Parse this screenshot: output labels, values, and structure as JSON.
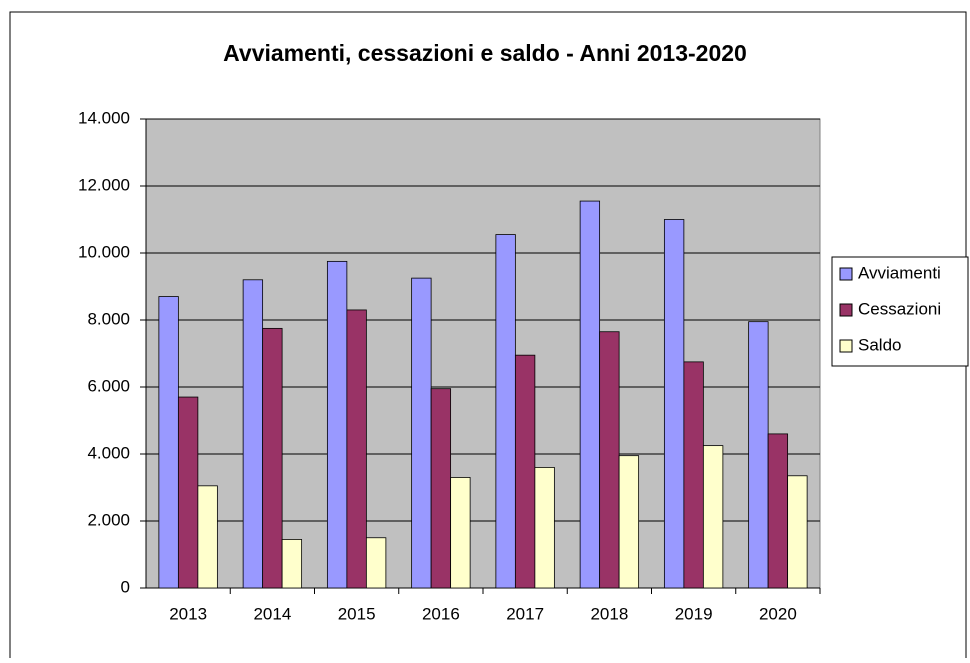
{
  "chart_data": {
    "type": "bar",
    "title": "Avviamenti, cessazioni e saldo - Anni 2013-2020",
    "categories": [
      "2013",
      "2014",
      "2015",
      "2016",
      "2017",
      "2018",
      "2019",
      "2020"
    ],
    "series": [
      {
        "name": "Avviamenti",
        "color": "#9999ff",
        "values": [
          8700,
          9200,
          9750,
          9250,
          10550,
          11550,
          11000,
          7950
        ]
      },
      {
        "name": "Cessazioni",
        "color": "#993366",
        "values": [
          5700,
          7750,
          8300,
          5950,
          6950,
          7650,
          6750,
          4600
        ]
      },
      {
        "name": "Saldo",
        "color": "#ffffcc",
        "values": [
          3050,
          1450,
          1500,
          3300,
          3600,
          3950,
          4250,
          3350
        ]
      }
    ],
    "ylim": [
      0,
      14000
    ],
    "yticks": [
      0,
      {
        "value": 2000,
        "label": "2.000"
      },
      {
        "value": 4000,
        "label": "4.000"
      },
      {
        "value": 6000,
        "label": "6.000"
      },
      {
        "value": 8000,
        "label": "8.000"
      },
      {
        "value": 10000,
        "label": "10.000"
      },
      {
        "value": 12000,
        "label": "12.000"
      },
      {
        "value": 14000,
        "label": "14.000"
      }
    ],
    "grid": true,
    "legend": "right"
  }
}
